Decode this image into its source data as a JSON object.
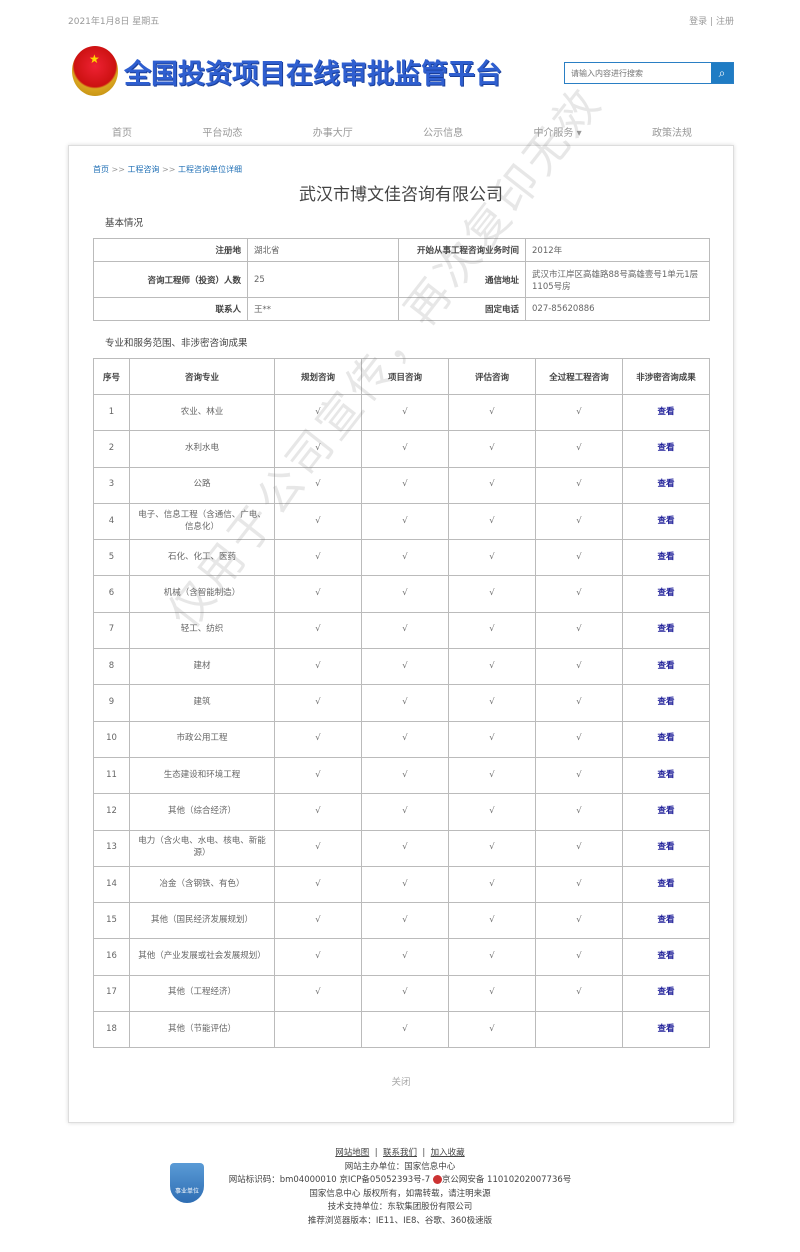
{
  "topbar": {
    "date": "2021年1月8日 星期五",
    "login": "登录",
    "separator": "|",
    "register": "注册"
  },
  "header": {
    "site_title": "全国投资项目在线审批监管平台",
    "search_placeholder": "请输入内容进行搜索"
  },
  "nav": [
    "首页",
    "平台动态",
    "办事大厅",
    "公示信息",
    "中介服务 ▾",
    "政策法规"
  ],
  "breadcrumb": [
    "首页",
    ">>",
    "工程咨询",
    ">>",
    "工程咨询单位详细"
  ],
  "company_name": "武汉市博文佳咨询有限公司",
  "basic": {
    "title": "基本情况",
    "rows": [
      [
        {
          "label": "注册地",
          "value": "湖北省"
        },
        {
          "label": "开始从事工程咨询业务时间",
          "value": "2012年"
        }
      ],
      [
        {
          "label": "咨询工程师（投资）人数",
          "value": "25"
        },
        {
          "label": "通信地址",
          "value": "武汉市江岸区高雄路88号高雄壹号1单元1层1105号房"
        }
      ],
      [
        {
          "label": "联系人",
          "value": "王**"
        },
        {
          "label": "固定电话",
          "value": "027-85620886"
        }
      ]
    ]
  },
  "scope": {
    "title": "专业和服务范围、非涉密咨询成果",
    "headers": [
      "序号",
      "咨询专业",
      "规划咨询",
      "项目咨询",
      "评估咨询",
      "全过程工程咨询",
      "非涉密咨询成果"
    ],
    "rows": [
      [
        "1",
        "农业、林业",
        "√",
        "√",
        "√",
        "√",
        "查看"
      ],
      [
        "2",
        "水利水电",
        "√",
        "√",
        "√",
        "√",
        "查看"
      ],
      [
        "3",
        "公路",
        "√",
        "√",
        "√",
        "√",
        "查看"
      ],
      [
        "4",
        "电子、信息工程（含通信、广电、信息化）",
        "√",
        "√",
        "√",
        "√",
        "查看"
      ],
      [
        "5",
        "石化、化工、医药",
        "√",
        "√",
        "√",
        "√",
        "查看"
      ],
      [
        "6",
        "机械（含智能制造）",
        "√",
        "√",
        "√",
        "√",
        "查看"
      ],
      [
        "7",
        "轻工、纺织",
        "√",
        "√",
        "√",
        "√",
        "查看"
      ],
      [
        "8",
        "建材",
        "√",
        "√",
        "√",
        "√",
        "查看"
      ],
      [
        "9",
        "建筑",
        "√",
        "√",
        "√",
        "√",
        "查看"
      ],
      [
        "10",
        "市政公用工程",
        "√",
        "√",
        "√",
        "√",
        "查看"
      ],
      [
        "11",
        "生态建设和环境工程",
        "√",
        "√",
        "√",
        "√",
        "查看"
      ],
      [
        "12",
        "其他（综合经济）",
        "√",
        "√",
        "√",
        "√",
        "查看"
      ],
      [
        "13",
        "电力（含火电、水电、核电、新能源）",
        "√",
        "√",
        "√",
        "√",
        "查看"
      ],
      [
        "14",
        "冶金（含钢铁、有色）",
        "√",
        "√",
        "√",
        "√",
        "查看"
      ],
      [
        "15",
        "其他（国民经济发展规划）",
        "√",
        "√",
        "√",
        "√",
        "查看"
      ],
      [
        "16",
        "其他（产业发展或社会发展规划）",
        "√",
        "√",
        "√",
        "√",
        "查看"
      ],
      [
        "17",
        "其他（工程经济）",
        "√",
        "√",
        "√",
        "√",
        "查看"
      ],
      [
        "18",
        "其他（节能评估）",
        "",
        "√",
        "√",
        "",
        "查看"
      ]
    ]
  },
  "close_label": "关闭",
  "watermark": "仅用于公司宣传，再次复印无效",
  "footer": {
    "links": [
      "网站地图",
      "联系我们",
      "加入收藏"
    ],
    "host": "网站主办单位：国家信息中心",
    "id_line": "网站标识码：bm04000010  京ICP备05052393号-7",
    "police": "京公网安备 11010202007736号",
    "copyright": "国家信息中心 版权所有，如需转载，请注明来源",
    "support": "技术支持单位：东软集团股份有限公司",
    "browser": "推荐浏览器版本：IE11、IE8、谷歌、360极速版",
    "badge": "事业单位"
  },
  "colors": {
    "accent": "#1f7cc4",
    "link": "#1f6fb5",
    "view_link": "#22229a"
  }
}
